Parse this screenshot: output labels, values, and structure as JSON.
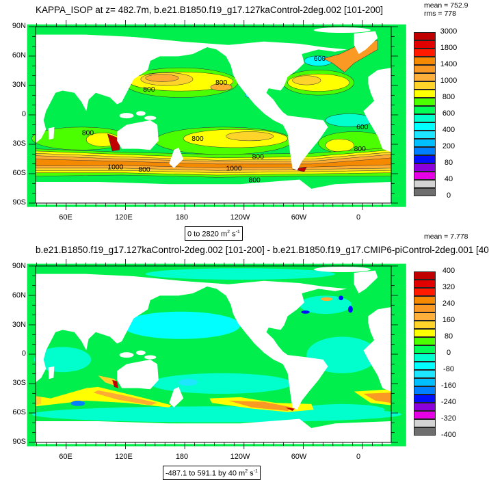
{
  "top_panel": {
    "title": "KAPPA_ISOP at z= 482.7m, b.e21.B1850.f19_g17.127kaControl-2deg.002 [101-200]",
    "mean": "mean = 752.9",
    "rms": "rms = 778",
    "range_text": "0 to 2820",
    "units": "m",
    "units_exp1": "2",
    "units_s": " s",
    "units_exp2": "-1",
    "colorbar_labels": [
      "3000",
      "1800",
      "1400",
      "1000",
      "800",
      "600",
      "400",
      "200",
      "80",
      "40",
      "0"
    ],
    "contour_labels": [
      "800",
      "800",
      "600",
      "800",
      "800",
      "800",
      "1000",
      "800",
      "1000",
      "800",
      "600",
      "800"
    ]
  },
  "bottom_panel": {
    "title": "b.e21.B1850.f19_g17.127kaControl-2deg.002 [101-200] - b.e21.B1850.f19_g17.CMIP6-piControl-2deg.001 [40",
    "mean": "mean = 7.778",
    "range_text": "-487.1 to 591.1 by 40",
    "units": "m",
    "units_exp1": "2",
    "units_s": " s",
    "units_exp2": "-1",
    "colorbar_labels": [
      "400",
      "320",
      "240",
      "160",
      "80",
      "0",
      "-80",
      "-160",
      "-240",
      "-320",
      "-400"
    ]
  },
  "axes": {
    "lat_labels": [
      "90N",
      "60N",
      "30N",
      "0",
      "30S",
      "60S",
      "90S"
    ],
    "lon_labels": [
      "60E",
      "120E",
      "180",
      "120W",
      "60W",
      "0"
    ]
  },
  "colormap": [
    "#c00000",
    "#e00000",
    "#ff1a00",
    "#f58a00",
    "#fa9a25",
    "#ffb03a",
    "#ffd42a",
    "#ffff00",
    "#4cff00",
    "#00ff55",
    "#00ffcc",
    "#00ffff",
    "#1ee6ff",
    "#00bfff",
    "#0080ff",
    "#0010ff",
    "#8c00dc",
    "#e600e6",
    "#d3d3d3",
    "#6e6e6e"
  ]
}
